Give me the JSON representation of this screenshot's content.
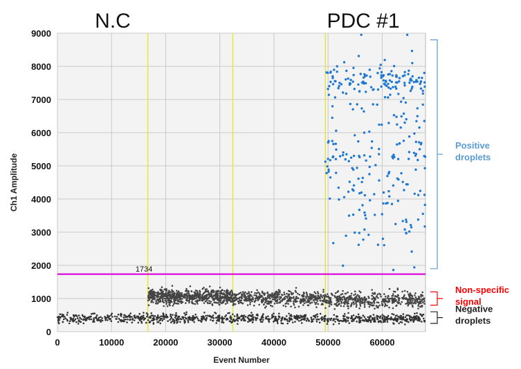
{
  "chart_data": {
    "type": "scatter",
    "title": "",
    "xlabel": "Event Number",
    "ylabel": "Ch1 Amplitude",
    "xlim": [
      0,
      68000
    ],
    "ylim": [
      0,
      9000
    ],
    "x_ticks": [
      0,
      10000,
      20000,
      30000,
      40000,
      50000,
      60000
    ],
    "y_ticks": [
      0,
      1000,
      2000,
      3000,
      4000,
      5000,
      6000,
      7000,
      8000,
      9000
    ],
    "grid": true,
    "threshold": {
      "value": 1734,
      "label": "1734",
      "color": "#e020e0"
    },
    "well_dividers": [
      16700,
      32400,
      49500
    ],
    "sample_labels": [
      {
        "text": "N.C",
        "x": 8000
      },
      {
        "text": "PDC #1",
        "x": 58500
      }
    ],
    "annotations": [
      {
        "lines": [
          "Positive",
          "droplets"
        ],
        "color": "#5b9bd5",
        "range": [
          1900,
          8800
        ]
      },
      {
        "lines": [
          "Non-specific",
          "signal"
        ],
        "color": "#ff0000",
        "range": [
          800,
          1200
        ]
      },
      {
        "lines": [
          "Negative",
          "droplets"
        ],
        "color": "#222222",
        "range": [
          250,
          600
        ]
      }
    ],
    "series": [
      {
        "name": "Negative droplets",
        "color": "#333333",
        "bands": [
          {
            "x": [
              0,
              68000
            ],
            "y": [
              400,
              70
            ]
          }
        ]
      },
      {
        "name": "Non-specific signal",
        "color": "#444444",
        "bands": [
          {
            "x": [
              16700,
              32400
            ],
            "y": [
              1060,
              110
            ]
          },
          {
            "x": [
              32400,
              49500
            ],
            "y": [
              1010,
              110
            ]
          },
          {
            "x": [
              49500,
              68000
            ],
            "y": [
              960,
              120
            ]
          }
        ]
      },
      {
        "name": "Positive droplets",
        "color": "#1e78d2",
        "bands": [
          {
            "x": [
              49500,
              68000
            ],
            "y": [
              7550,
              230
            ]
          },
          {
            "x": [
              49500,
              68000
            ],
            "y": [
              5200,
              1400
            ]
          }
        ]
      }
    ]
  }
}
